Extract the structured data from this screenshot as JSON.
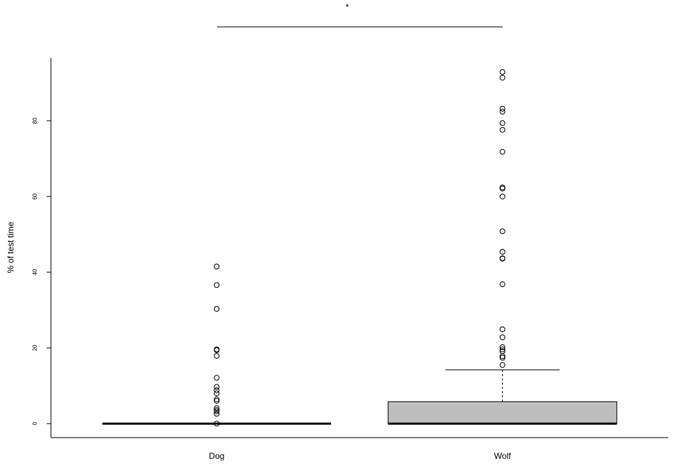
{
  "chart_data": {
    "type": "box",
    "y_label": "% of test time",
    "annotation": "*",
    "categories": [
      "Dog",
      "Wolf"
    ],
    "colors": [
      "#bebebe",
      "#bebebe"
    ],
    "boxes": [
      {
        "min": 0,
        "q1": 0,
        "median": 0,
        "q3": 0,
        "max": 0,
        "outliers": [
          41.5,
          36.6,
          30.3,
          19.6,
          19.4,
          17.9,
          12.1,
          9.7,
          8.8,
          8.0,
          6.4,
          6.0,
          4.1,
          3.6,
          3.2,
          2.6,
          0
        ]
      },
      {
        "min": 0,
        "q1": 0,
        "median": 0,
        "q3": 5.8,
        "max": 14.2,
        "outliers": [
          92.9,
          91.4,
          83.2,
          82.4,
          79.4,
          77.6,
          71.8,
          62.4,
          62.1,
          60,
          50.8,
          45.4,
          43.7,
          43.6,
          36.8,
          24.9,
          22.8,
          20.2,
          19.6,
          19.1,
          17.8,
          17.4,
          15.5
        ]
      }
    ],
    "ylim": [
      -3.7,
      96.6
    ],
    "yticks": [
      0,
      20,
      40,
      60,
      80
    ]
  }
}
